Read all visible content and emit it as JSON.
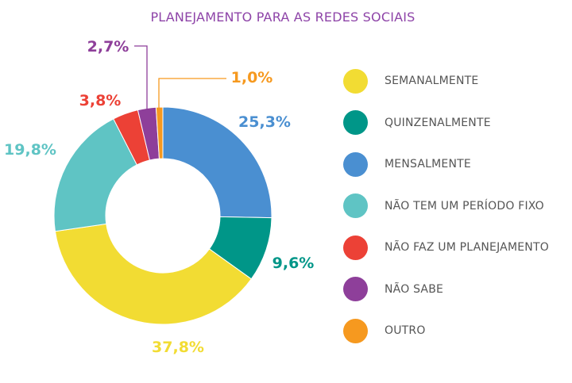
{
  "chart_data": {
    "type": "donut",
    "title": "PLANEJAMENTO PARA AS REDES SOCIAIS",
    "slices": [
      {
        "label": "MENSALMENTE",
        "value": 25.3,
        "display": "25,3%",
        "color": "#4a8fd1"
      },
      {
        "label": "QUINZENALMENTE",
        "value": 9.6,
        "display": "9,6%",
        "color": "#009688"
      },
      {
        "label": "SEMANALMENTE",
        "value": 37.8,
        "display": "37,8%",
        "color": "#f2dc33"
      },
      {
        "label": "NÃO TEM UM PERÍODO FIXO",
        "value": 19.8,
        "display": "19,8%",
        "color": "#5fc4c4"
      },
      {
        "label": "NÃO FAZ UM PLANEJAMENTO",
        "value": 3.8,
        "display": "3,8%",
        "color": "#ec4136"
      },
      {
        "label": "NÃO SABE",
        "value": 2.7,
        "display": "2,7%",
        "color": "#8e3f9a"
      },
      {
        "label": "OUTRO",
        "value": 1.0,
        "display": "1,0%",
        "color": "#f6991f"
      }
    ],
    "legend": [
      {
        "label": "SEMANALMENTE",
        "color": "#f2dc33"
      },
      {
        "label": "QUINZENALMENTE",
        "color": "#009688"
      },
      {
        "label": "MENSALMENTE",
        "color": "#4a8fd1"
      },
      {
        "label": "NÃO TEM UM PERÍODO FIXO",
        "color": "#5fc4c4"
      },
      {
        "label": "NÃO FAZ UM PLANEJAMENTO",
        "color": "#ec4136"
      },
      {
        "label": "NÃO SABE",
        "color": "#8e3f9a"
      },
      {
        "label": "OUTRO",
        "color": "#f6991f"
      }
    ],
    "legend_placement": "right"
  }
}
